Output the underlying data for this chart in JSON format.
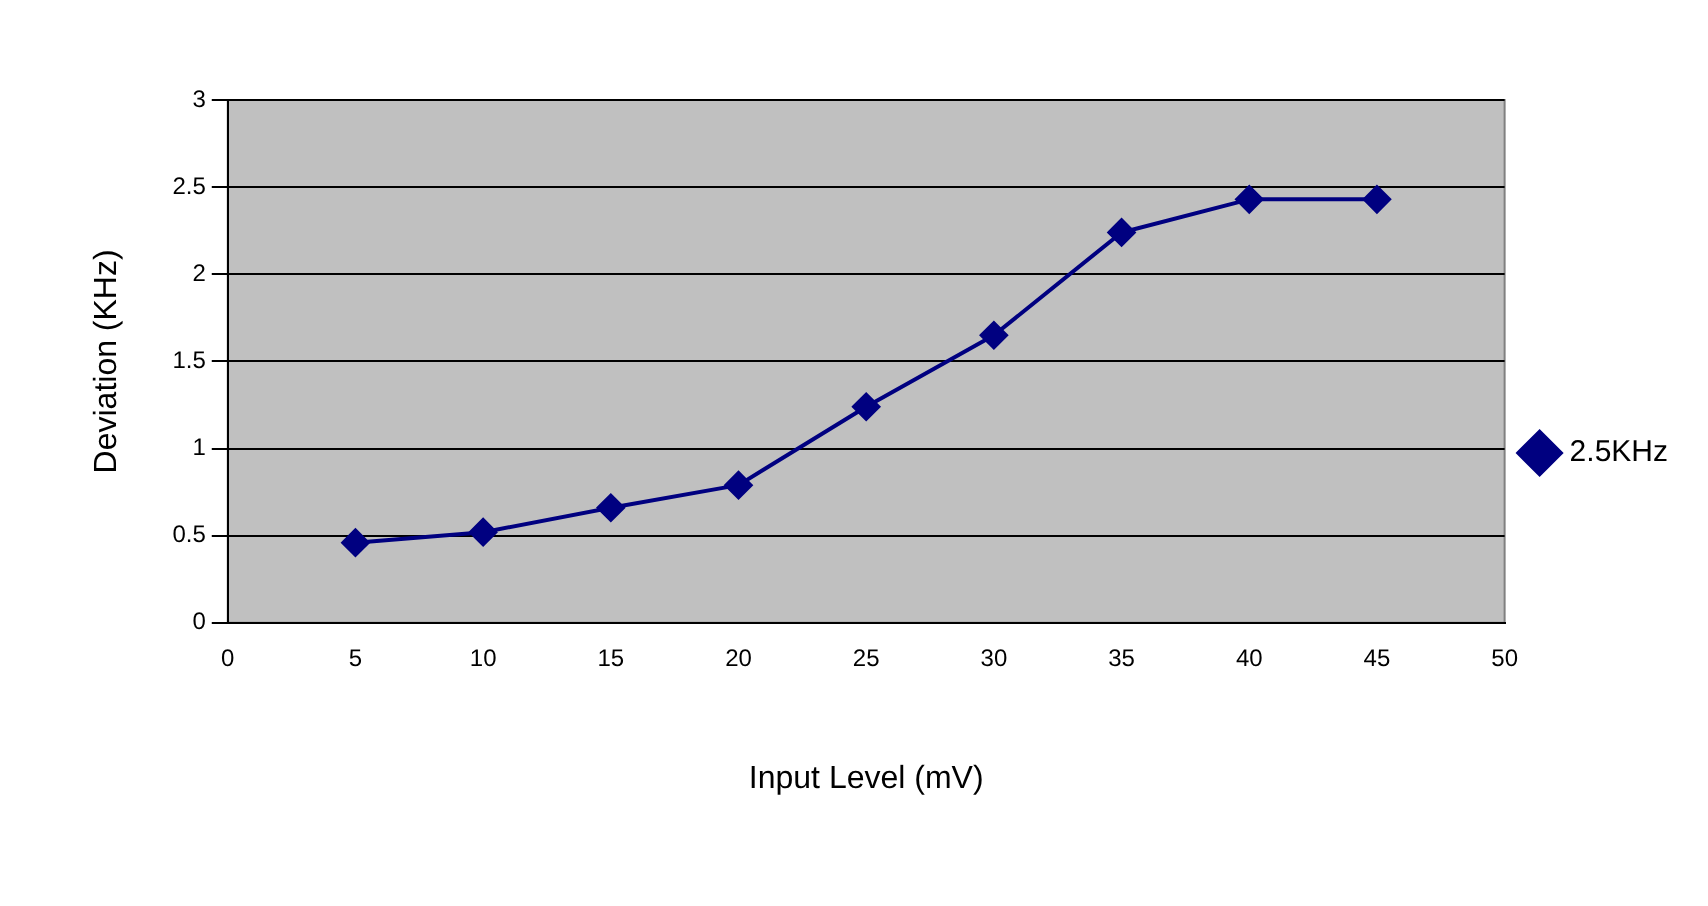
{
  "chart_data": {
    "type": "line",
    "xlabel": "Input Level (mV)",
    "ylabel": "Deviation (KHz)",
    "x": [
      5,
      10,
      15,
      20,
      25,
      30,
      35,
      40,
      45
    ],
    "series": [
      {
        "name": "2.5KHz",
        "color": "#000080",
        "values": [
          0.46,
          0.52,
          0.66,
          0.79,
          1.24,
          1.65,
          2.24,
          2.43,
          2.43
        ]
      }
    ],
    "xlim": [
      0,
      50
    ],
    "xticks": [
      0,
      5,
      10,
      15,
      20,
      25,
      30,
      35,
      40,
      45,
      50
    ],
    "ylim": [
      0,
      3
    ],
    "yticks": [
      0,
      0.5,
      1,
      1.5,
      2,
      2.5,
      3
    ],
    "grid": "y",
    "legend": "right",
    "marker": "diamond",
    "line_style": "solid"
  }
}
